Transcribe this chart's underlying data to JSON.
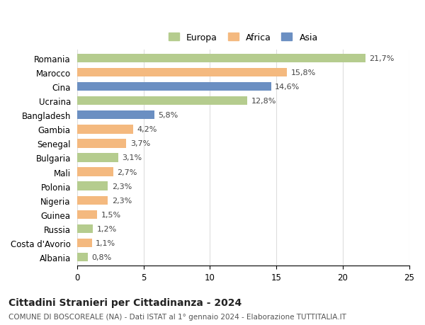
{
  "countries": [
    "Romania",
    "Marocco",
    "Cina",
    "Ucraina",
    "Bangladesh",
    "Gambia",
    "Senegal",
    "Bulgaria",
    "Mali",
    "Polonia",
    "Nigeria",
    "Guinea",
    "Russia",
    "Costa d'Avorio",
    "Albania"
  ],
  "values": [
    21.7,
    15.8,
    14.6,
    12.8,
    5.8,
    4.2,
    3.7,
    3.1,
    2.7,
    2.3,
    2.3,
    1.5,
    1.2,
    1.1,
    0.8
  ],
  "labels": [
    "21,7%",
    "15,8%",
    "14,6%",
    "12,8%",
    "5,8%",
    "4,2%",
    "3,7%",
    "3,1%",
    "2,7%",
    "2,3%",
    "2,3%",
    "1,5%",
    "1,2%",
    "1,1%",
    "0,8%"
  ],
  "continents": [
    "Europa",
    "Africa",
    "Asia",
    "Europa",
    "Asia",
    "Africa",
    "Africa",
    "Europa",
    "Africa",
    "Europa",
    "Africa",
    "Africa",
    "Europa",
    "Africa",
    "Europa"
  ],
  "colors": {
    "Europa": "#b5cc8e",
    "Africa": "#f4b97f",
    "Asia": "#6b8fc2"
  },
  "xlim": [
    0,
    25
  ],
  "xticks": [
    0,
    5,
    10,
    15,
    20,
    25
  ],
  "title": "Cittadini Stranieri per Cittadinanza - 2024",
  "subtitle": "COMUNE DI BOSCOREALE (NA) - Dati ISTAT al 1° gennaio 2024 - Elaborazione TUTTITALIA.IT",
  "background_color": "#ffffff",
  "grid_color": "#dddddd",
  "bar_height": 0.62,
  "label_fontsize": 8,
  "ytick_fontsize": 8.5,
  "xtick_fontsize": 8.5,
  "title_fontsize": 10,
  "subtitle_fontsize": 7.5
}
